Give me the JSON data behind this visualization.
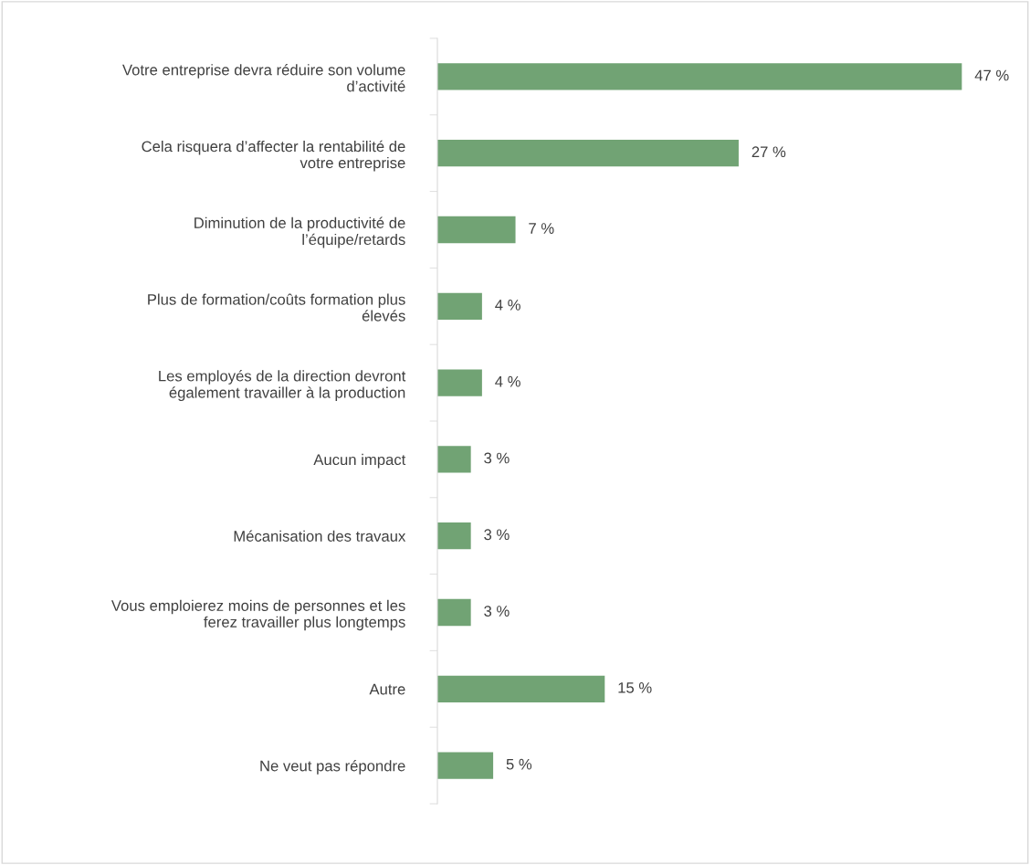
{
  "chart_data": {
    "type": "bar",
    "orientation": "horizontal",
    "categories": [
      "Votre entreprise devra réduire son volume\nd’activité",
      "Cela risquera d’affecter la rentabilité de\nvotre entreprise",
      "Diminution de la productivité de\nl’équipe/retards",
      "Plus de formation/coûts formation plus\nélevés",
      "Les employés de la direction devront\négalement travailler à la production",
      "Aucun impact",
      "Mécanisation des travaux",
      "Vous emploierez moins de personnes et les\nferez travailler plus longtemps",
      "Autre",
      "Ne veut pas répondre"
    ],
    "values": [
      47,
      27,
      7,
      4,
      4,
      3,
      3,
      3,
      15,
      5
    ],
    "value_labels": [
      "47 %",
      "27 %",
      "7 %",
      "4 %",
      "4 %",
      "3 %",
      "3 %",
      "3 %",
      "15 %",
      "5 %"
    ],
    "color": "#71a374",
    "grid": false,
    "legend": false
  }
}
